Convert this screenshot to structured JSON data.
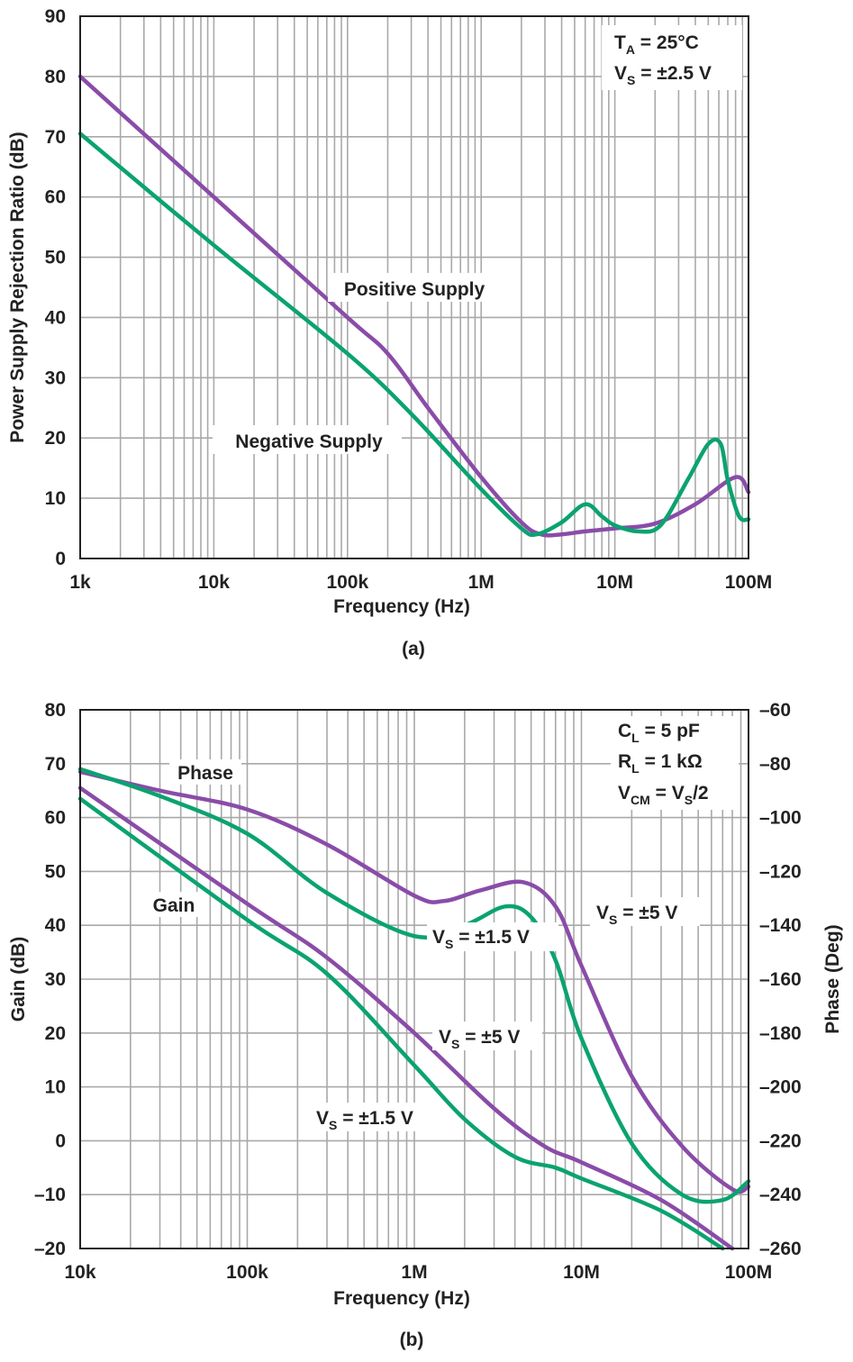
{
  "colors": {
    "purple": "#8a4ca8",
    "green": "#0aa36f",
    "grid": "#a9a9a9",
    "text": "#222222"
  },
  "chart_data": [
    {
      "type": "line",
      "caption": "(a)",
      "xscale": "log",
      "xlim": [
        1000,
        100000000
      ],
      "ylim": [
        0,
        90
      ],
      "xlabel": "Frequency (Hz)",
      "ylabel": "Power Supply Rejection Ratio (dB)",
      "xticks": [
        {
          "value": 1000,
          "label": "1k"
        },
        {
          "value": 10000,
          "label": "10k"
        },
        {
          "value": 100000,
          "label": "100k"
        },
        {
          "value": 1000000,
          "label": "1M"
        },
        {
          "value": 10000000,
          "label": "10M"
        },
        {
          "value": 100000000,
          "label": "100M"
        }
      ],
      "yticks": [
        {
          "value": 0,
          "label": "0"
        },
        {
          "value": 10,
          "label": "10"
        },
        {
          "value": 20,
          "label": "20"
        },
        {
          "value": 30,
          "label": "30"
        },
        {
          "value": 40,
          "label": "40"
        },
        {
          "value": 50,
          "label": "50"
        },
        {
          "value": 60,
          "label": "60"
        },
        {
          "value": 70,
          "label": "70"
        },
        {
          "value": 80,
          "label": "80"
        },
        {
          "value": 90,
          "label": "90"
        }
      ],
      "conditions": [
        {
          "main": "T",
          "sub": "A",
          "rest": " = 25°C"
        },
        {
          "main": "V",
          "sub": "S",
          "rest": " = ±2.5 V"
        }
      ],
      "series": [
        {
          "name": "Positive Supply",
          "color": "#8a4ca8",
          "x": [
            1000,
            10000,
            100000,
            200000,
            400000,
            1000000,
            2000000,
            2800000,
            4000000,
            6000000,
            10000000,
            20000000,
            40000000,
            80000000,
            100000000
          ],
          "y": [
            80,
            60,
            40,
            34,
            25,
            13.5,
            6,
            4,
            4,
            4.5,
            5,
            5.8,
            9,
            13.5,
            11
          ]
        },
        {
          "name": "Negative Supply",
          "color": "#0aa36f",
          "x": [
            1000,
            10000,
            100000,
            300000,
            1000000,
            2000000,
            2600000,
            4000000,
            6000000,
            8000000,
            10000000,
            15000000,
            22000000,
            35000000,
            50000000,
            62000000,
            70000000,
            85000000,
            100000000
          ],
          "y": [
            70.5,
            52,
            34,
            24,
            11.5,
            5,
            4,
            6,
            9,
            7,
            5.5,
            4.5,
            5.5,
            13,
            19,
            19,
            13,
            7,
            6.5
          ]
        }
      ],
      "annotations": [
        {
          "text": "Positive Supply"
        },
        {
          "text": "Negative Supply"
        }
      ]
    },
    {
      "type": "line",
      "caption": "(b)",
      "xscale": "log",
      "xlim": [
        10000,
        100000000
      ],
      "ylim": [
        -20,
        80
      ],
      "y2lim": [
        -260,
        -60
      ],
      "xlabel": "Frequency (Hz)",
      "ylabel": "Gain (dB)",
      "y2label": "Phase (Deg)",
      "xticks": [
        {
          "value": 10000,
          "label": "10k"
        },
        {
          "value": 100000,
          "label": "100k"
        },
        {
          "value": 1000000,
          "label": "1M"
        },
        {
          "value": 10000000,
          "label": "10M"
        },
        {
          "value": 100000000,
          "label": "100M"
        }
      ],
      "yticks": [
        {
          "value": -20,
          "label": "–20"
        },
        {
          "value": -10,
          "label": "–10"
        },
        {
          "value": 0,
          "label": "0"
        },
        {
          "value": 10,
          "label": "10"
        },
        {
          "value": 20,
          "label": "20"
        },
        {
          "value": 30,
          "label": "30"
        },
        {
          "value": 40,
          "label": "40"
        },
        {
          "value": 50,
          "label": "50"
        },
        {
          "value": 60,
          "label": "60"
        },
        {
          "value": 70,
          "label": "70"
        },
        {
          "value": 80,
          "label": "80"
        }
      ],
      "y2ticks": [
        {
          "value": -60,
          "label": "–60"
        },
        {
          "value": -80,
          "label": "–80"
        },
        {
          "value": -100,
          "label": "–100"
        },
        {
          "value": -120,
          "label": "–120"
        },
        {
          "value": -140,
          "label": "–140"
        },
        {
          "value": -160,
          "label": "–160"
        },
        {
          "value": -180,
          "label": "–180"
        },
        {
          "value": -200,
          "label": "–200"
        },
        {
          "value": -220,
          "label": "–220"
        },
        {
          "value": -240,
          "label": "–240"
        },
        {
          "value": -260,
          "label": "–260"
        }
      ],
      "conditions": [
        {
          "main": "C",
          "sub": "L",
          "rest": " = 5 pF"
        },
        {
          "main": "R",
          "sub": "L",
          "rest": " = 1 kΩ"
        },
        {
          "main": "V",
          "sub": "CM",
          "rest": " = V",
          "sub2": "S",
          "rest2": "/2"
        }
      ],
      "series": [
        {
          "name": "Phase, VS = ±5 V",
          "color": "#8a4ca8",
          "axis": "right",
          "x": [
            10000,
            30000,
            100000,
            300000,
            1000000,
            1500000,
            2500000,
            4500000,
            7000000,
            10000000,
            20000000,
            40000000,
            80000000,
            100000000
          ],
          "y": [
            -83,
            -90,
            -97,
            -110,
            -129,
            -131,
            -127,
            -124,
            -133,
            -155,
            -196,
            -222,
            -238,
            -237
          ]
        },
        {
          "name": "Phase, VS = ±1.5 V",
          "color": "#0aa36f",
          "axis": "right",
          "x": [
            10000,
            30000,
            100000,
            300000,
            1000000,
            2000000,
            3500000,
            5000000,
            7000000,
            10000000,
            20000000,
            40000000,
            70000000,
            100000000
          ],
          "y": [
            -82,
            -92,
            -106,
            -128,
            -144,
            -140,
            -133,
            -137,
            -153,
            -182,
            -221,
            -240,
            -242,
            -235
          ]
        },
        {
          "name": "Gain, VS = ±5 V",
          "color": "#8a4ca8",
          "axis": "left",
          "x": [
            10000,
            100000,
            300000,
            1000000,
            3000000,
            6000000,
            10000000,
            30000000,
            80000000
          ],
          "y": [
            65.5,
            44,
            34,
            20,
            6,
            -1,
            -4,
            -11,
            -20
          ]
        },
        {
          "name": "Gain, VS = ±1.5 V",
          "color": "#0aa36f",
          "axis": "left",
          "x": [
            10000,
            100000,
            300000,
            1000000,
            2000000,
            4000000,
            7000000,
            10000000,
            30000000,
            70000000
          ],
          "y": [
            63.5,
            41,
            31,
            14,
            4,
            -3,
            -5,
            -7,
            -13,
            -20
          ]
        }
      ],
      "annotations": [
        {
          "text": "Phase"
        },
        {
          "text": "Gain"
        },
        {
          "main": "V",
          "sub": "S",
          "rest": " = ±5 V"
        },
        {
          "main": "V",
          "sub": "S",
          "rest": " = ±1.5 V"
        },
        {
          "main": "V",
          "sub": "S",
          "rest": " = ±5 V"
        },
        {
          "main": "V",
          "sub": "S",
          "rest": " = ±1.5 V"
        }
      ]
    }
  ]
}
